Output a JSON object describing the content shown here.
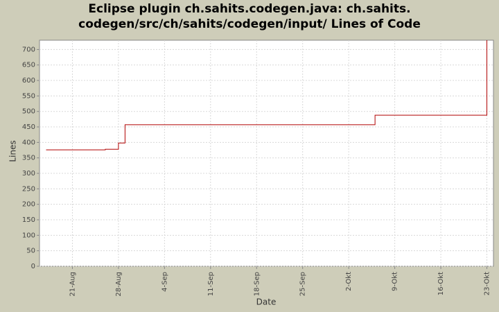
{
  "chart_data": {
    "type": "step-line",
    "title": [
      "Eclipse plugin ch.sahits.codegen.java: ch.sahits.",
      "codegen/src/ch/sahits/codegen/input/ Lines of Code"
    ],
    "x_label": "Date",
    "y_label": "Lines",
    "x": [
      "08-17",
      "08-26",
      "08-28",
      "08-29",
      "10-06",
      "10-23"
    ],
    "series": [
      {
        "name": "Lines",
        "color": "#b00000",
        "values": [
          376,
          378,
          398,
          457,
          488,
          730
        ]
      }
    ],
    "xlim": [
      "08-16",
      "10-24"
    ],
    "xticks": [
      {
        "value": "08-21",
        "label": "21-Aug"
      },
      {
        "value": "08-28",
        "label": "28-Aug"
      },
      {
        "value": "09-04",
        "label": "4-Sep"
      },
      {
        "value": "09-11",
        "label": "11-Sep"
      },
      {
        "value": "09-18",
        "label": "18-Sep"
      },
      {
        "value": "09-25",
        "label": "25-Sep"
      },
      {
        "value": "10-02",
        "label": "2-Okt"
      },
      {
        "value": "10-09",
        "label": "9-Okt"
      },
      {
        "value": "10-16",
        "label": "16-Okt"
      },
      {
        "value": "10-23",
        "label": "23-Okt"
      }
    ],
    "ylim": [
      0,
      730
    ],
    "yticks": [
      0,
      50,
      100,
      150,
      200,
      250,
      300,
      350,
      400,
      450,
      500,
      550,
      600,
      650,
      700
    ],
    "grid": true
  }
}
